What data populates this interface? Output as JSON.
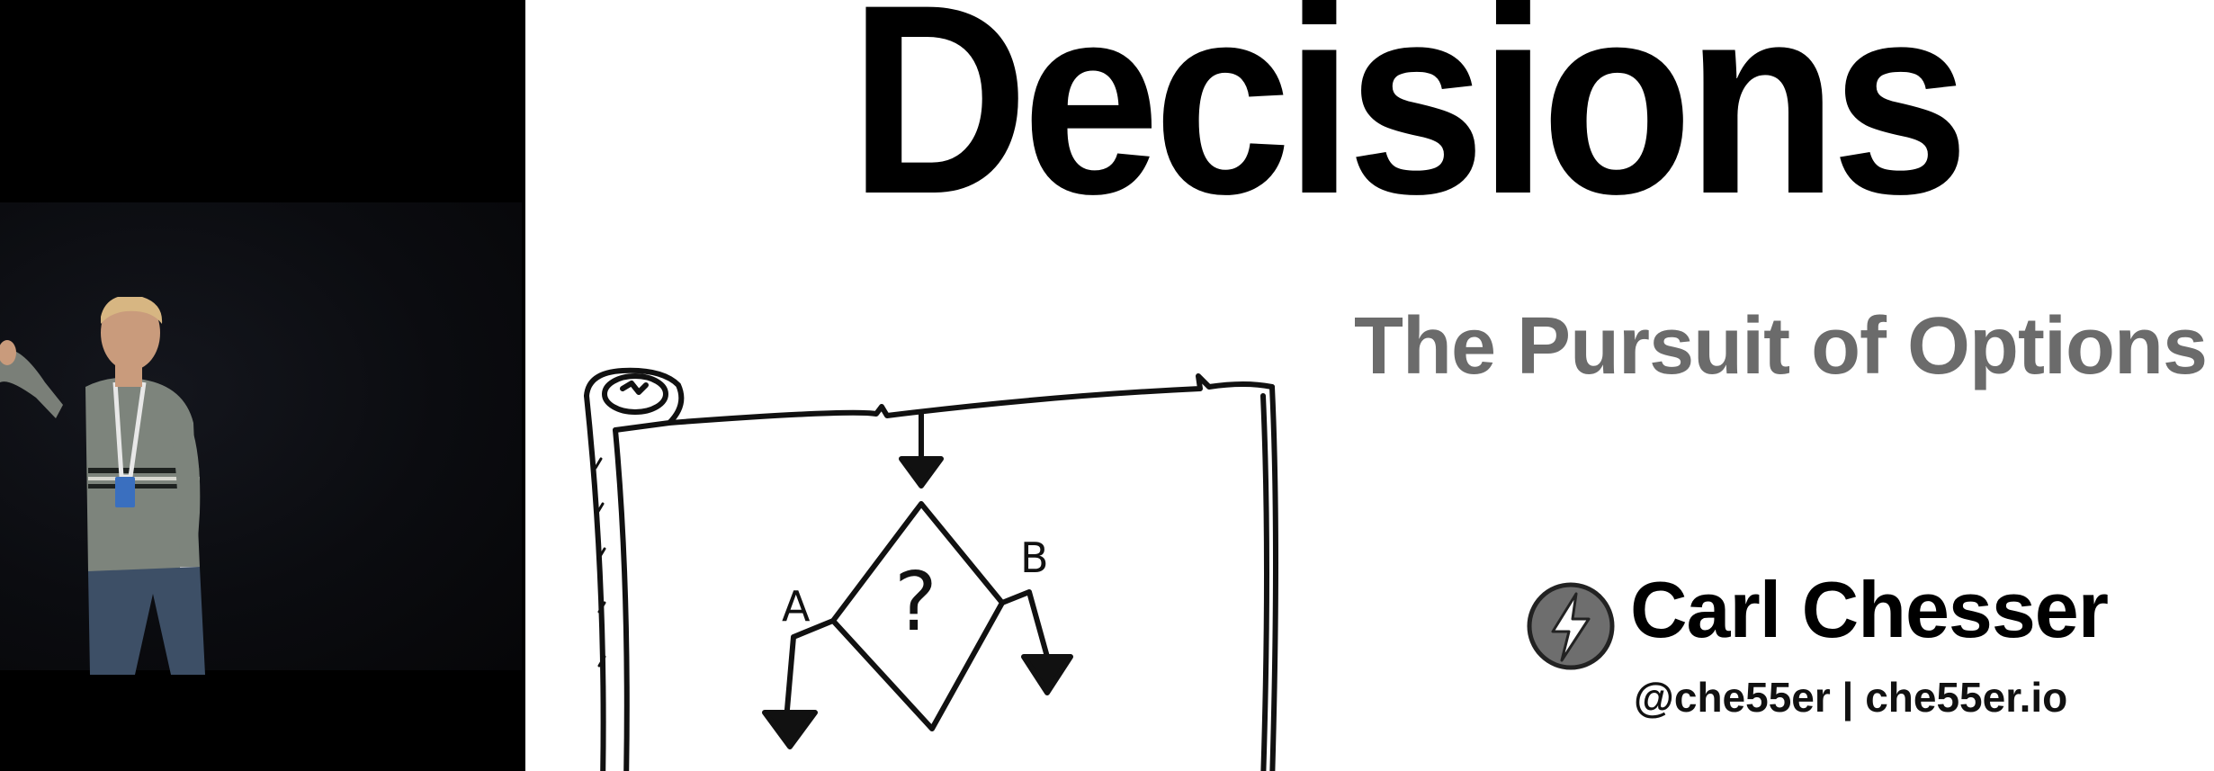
{
  "slide": {
    "title": "Decisions",
    "subtitle": "The Pursuit of Options",
    "presenter": {
      "name": "Carl Chesser",
      "handle": "@che55er | che55er.io",
      "logo_icon": "lightning-bolt-icon"
    },
    "drawing": {
      "icon": "decision-scroll-drawing",
      "decision_symbol": "?",
      "branch_a_label": "A",
      "branch_b_label": "B"
    },
    "colors": {
      "title": "#000000",
      "subtitle": "#6b6b6b",
      "background": "#ffffff"
    }
  },
  "video": {
    "background": "#000000"
  }
}
